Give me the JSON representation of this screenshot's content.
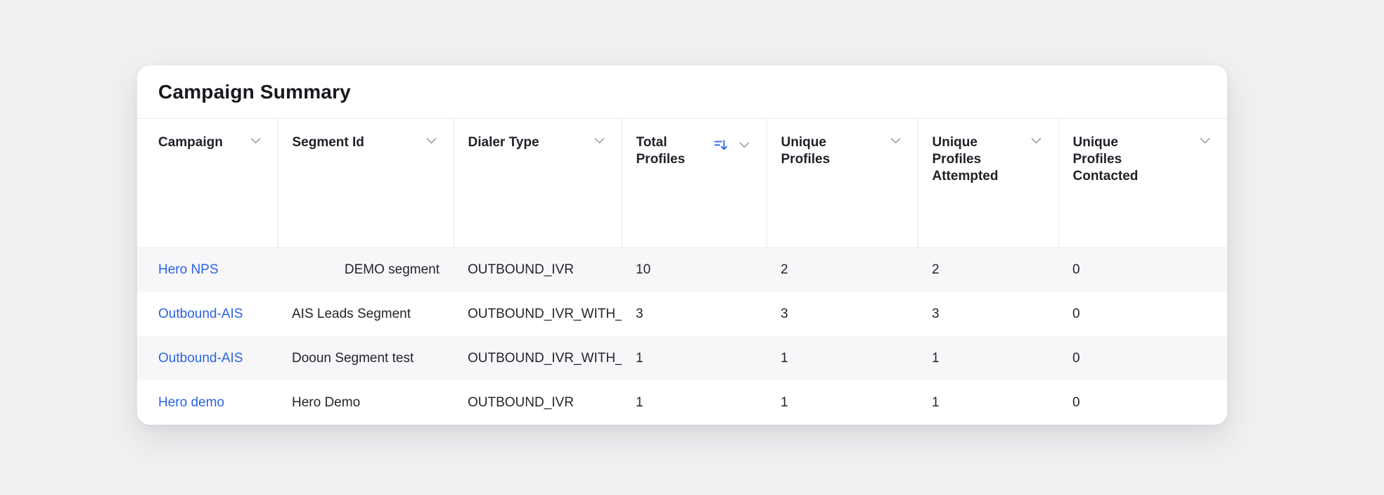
{
  "card": {
    "title": "Campaign Summary"
  },
  "colors": {
    "accent_sort_blue": "#2f6bec",
    "link_blue": "#2b63e1",
    "row_stripe": "#f7f7f9",
    "border": "#e8e9eb",
    "chevron_gray": "#9aa1ab",
    "page_background": "#f0f0f2"
  },
  "icons": {
    "column_menu": "chevron-down-icon",
    "total_profiles_sort": "sort-descending-icon"
  },
  "table": {
    "columns": [
      {
        "key": "campaign",
        "label": "Campaign"
      },
      {
        "key": "segment_id",
        "label": "Segment Id"
      },
      {
        "key": "dialer_type",
        "label": "Dialer Type"
      },
      {
        "key": "total_profiles",
        "label": "Total Profiles",
        "sort": "descending"
      },
      {
        "key": "unique_profiles",
        "label": "Unique Profiles"
      },
      {
        "key": "unique_profiles_attempted",
        "label": "Unique Profiles Attempted"
      },
      {
        "key": "unique_profiles_contacted",
        "label": "Unique Profiles Contacted"
      }
    ],
    "rows": [
      {
        "campaign": "Hero NPS",
        "segment_id": "DEMO segment",
        "segment_id_align": "right",
        "dialer_type": "OUTBOUND_IVR",
        "total_profiles": "10",
        "unique_profiles": "2",
        "unique_profiles_attempted": "2",
        "unique_profiles_contacted": "0"
      },
      {
        "campaign": "Outbound-AIS",
        "segment_id": "AIS Leads Segment",
        "dialer_type": "OUTBOUND_IVR_WITH_",
        "total_profiles": "3",
        "unique_profiles": "3",
        "unique_profiles_attempted": "3",
        "unique_profiles_contacted": "0"
      },
      {
        "campaign": "Outbound-AIS",
        "segment_id": "Dooun Segment test",
        "dialer_type": "OUTBOUND_IVR_WITH_",
        "total_profiles": "1",
        "unique_profiles": "1",
        "unique_profiles_attempted": "1",
        "unique_profiles_contacted": "0"
      },
      {
        "campaign": "Hero demo",
        "segment_id": "Hero Demo",
        "dialer_type": "OUTBOUND_IVR",
        "total_profiles": "1",
        "unique_profiles": "1",
        "unique_profiles_attempted": "1",
        "unique_profiles_contacted": "0"
      }
    ]
  }
}
